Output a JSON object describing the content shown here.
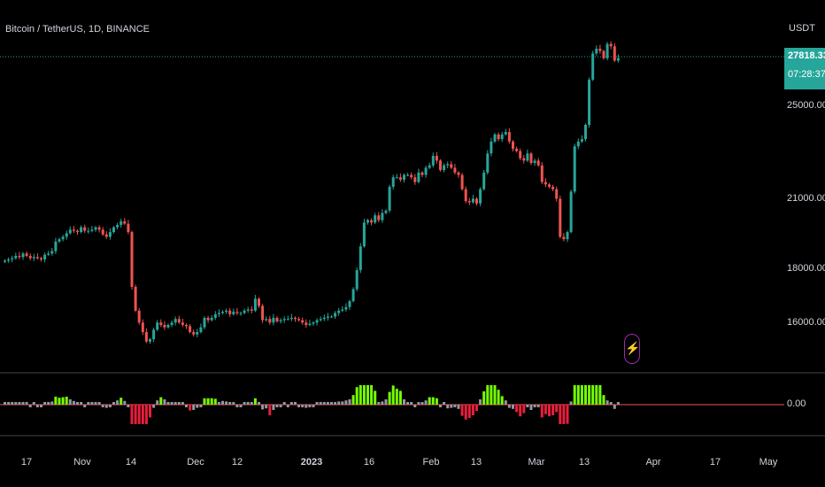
{
  "header": {
    "symbol": "Bitcoin / TetherUS, 1D, BINANCE",
    "currency": "USDT"
  },
  "last_price": {
    "value": "27818.33",
    "countdown": "07:28:37",
    "color": "#26a69a"
  },
  "price_axis": {
    "labels": [
      "25000.00",
      "21000.00",
      "18000.00",
      "16000.00"
    ]
  },
  "oscillator": {
    "value_label": "0.00",
    "colors": {
      "bull": "#76ff03",
      "bear": "#e91e3c",
      "neutral": "#9598a1"
    }
  },
  "date_axis": {
    "labels": [
      "17",
      "Nov",
      "14",
      "Dec",
      "12",
      "2023",
      "16",
      "Feb",
      "13",
      "Mar",
      "13",
      "Apr",
      "17",
      "May"
    ]
  },
  "icons": {
    "alert": "lightning-icon"
  },
  "colors": {
    "up": "#26a69a",
    "down": "#ef5350",
    "background": "#000000"
  },
  "chart_data": {
    "type": "candlestick",
    "price_range": [
      15000,
      29500
    ],
    "close_series": [
      19300,
      19350,
      19400,
      19500,
      19450,
      19600,
      19500,
      19400,
      19450,
      19400,
      19350,
      19550,
      19600,
      19700,
      20100,
      20200,
      20300,
      20450,
      20600,
      20550,
      20500,
      20700,
      20550,
      20550,
      20600,
      20700,
      20600,
      20400,
      20300,
      20500,
      20700,
      20800,
      20950,
      20850,
      20500,
      18200,
      17200,
      16700,
      16300,
      15900,
      16000,
      16400,
      16700,
      16600,
      16500,
      16600,
      16700,
      16850,
      16700,
      16600,
      16550,
      16300,
      16200,
      16300,
      16500,
      16900,
      16800,
      16900,
      17050,
      17100,
      17150,
      17200,
      17050,
      17150,
      17100,
      17100,
      17200,
      17250,
      17200,
      17700,
      17400,
      16800,
      16850,
      16700,
      16900,
      16750,
      16800,
      16850,
      16850,
      16900,
      16850,
      16800,
      16700,
      16600,
      16650,
      16700,
      16800,
      16850,
      16900,
      16950,
      16950,
      17100,
      17200,
      17250,
      17350,
      17600,
      18100,
      18900,
      19900,
      20900,
      21000,
      20900,
      21200,
      21000,
      21300,
      21400,
      22400,
      22800,
      22800,
      22700,
      22900,
      22900,
      22800,
      22600,
      23000,
      22900,
      23200,
      23300,
      23700,
      23500,
      23100,
      23300,
      23350,
      23200,
      23000,
      22900,
      22300,
      21800,
      21750,
      21900,
      21700,
      22300,
      23000,
      23800,
      24300,
      24600,
      24400,
      24600,
      24700,
      24300,
      24000,
      23900,
      23600,
      23500,
      23800,
      23400,
      23500,
      23300,
      22600,
      22500,
      22400,
      22300,
      21900,
      20300,
      20200,
      20500,
      22200,
      24100,
      24300,
      24400,
      25000,
      26900,
      28000,
      28200,
      28100,
      27800,
      28400,
      28300,
      27700,
      27800
    ]
  }
}
